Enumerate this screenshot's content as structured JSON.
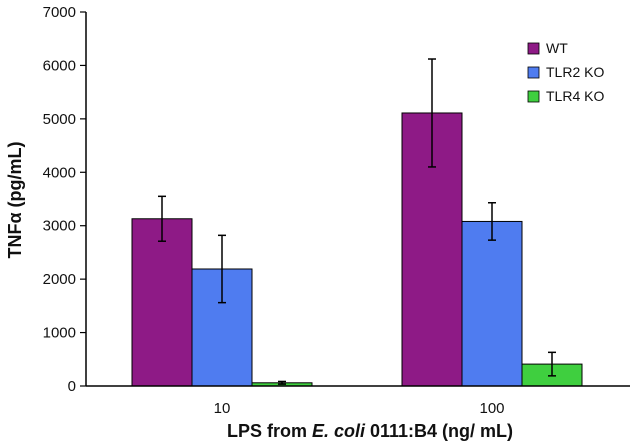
{
  "chart_data": {
    "type": "bar",
    "title": "",
    "xlabel": "LPS from E. coli 0111:B4  (ng/ mL)",
    "xlabel_parts": {
      "prefix": "LPS from ",
      "italic": "E. coli",
      "suffix": " 0111:B4  (ng/ mL)"
    },
    "ylabel": "TNFα  (pg/mL)",
    "ylim": [
      0,
      7000
    ],
    "yticks": [
      0,
      1000,
      2000,
      3000,
      4000,
      5000,
      6000,
      7000
    ],
    "categories": [
      "10",
      "100"
    ],
    "series": [
      {
        "name": "WT",
        "color": "#8e1a86",
        "values": [
          3130,
          5110
        ],
        "errors": [
          420,
          1010
        ]
      },
      {
        "name": "TLR2 KO",
        "color": "#4f7cf0",
        "values": [
          2190,
          3080
        ],
        "errors": [
          630,
          350
        ]
      },
      {
        "name": "TLR4 KO",
        "color": "#3fcf3f",
        "values": [
          60,
          410
        ],
        "errors": [
          25,
          220
        ]
      }
    ],
    "legend": "top-right",
    "grid": false
  }
}
